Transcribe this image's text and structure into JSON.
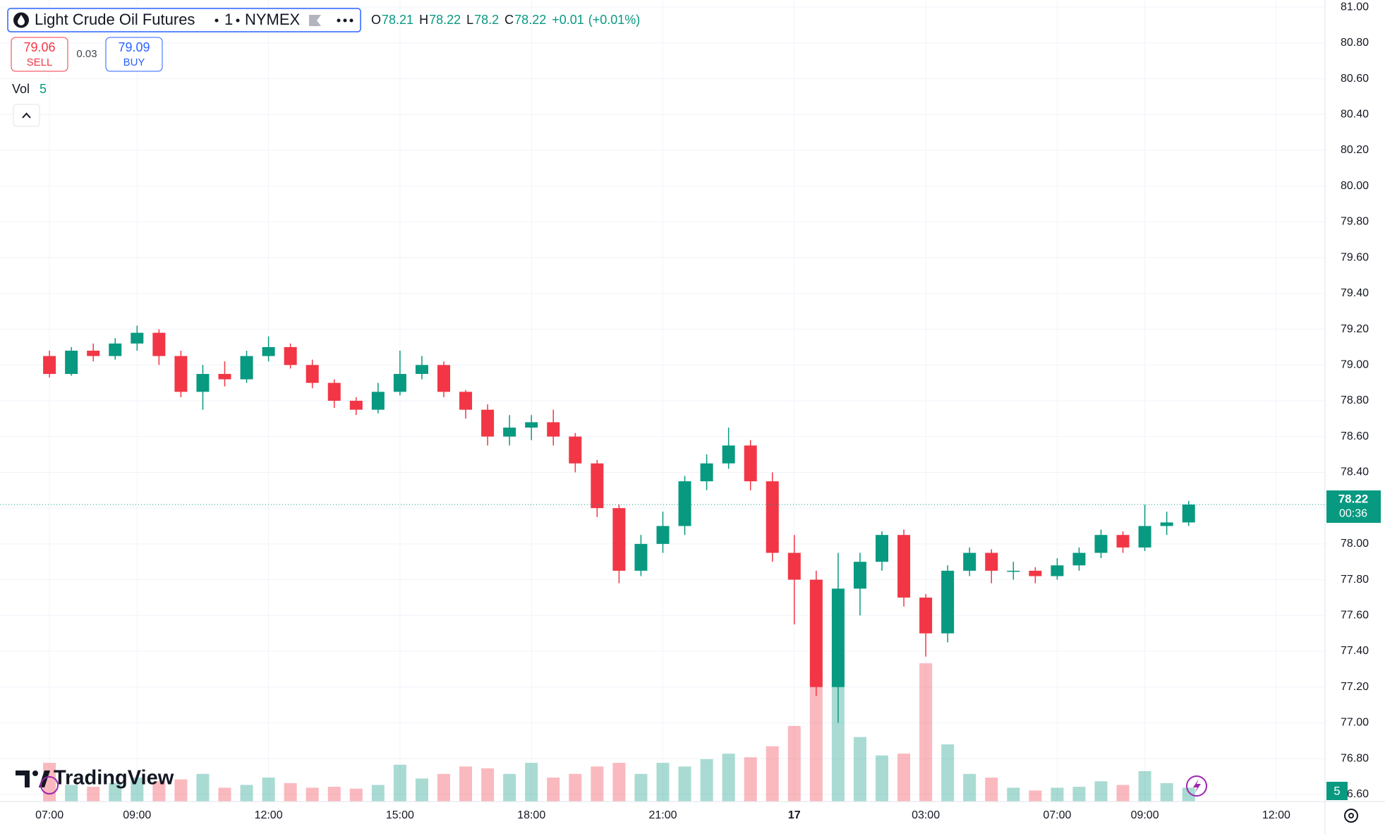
{
  "chart_data": {
    "type": "candlestick",
    "title": "Light Crude Oil Futures",
    "interval": "1",
    "exchange": "NYMEX",
    "ohlc_legend": {
      "labels": [
        "O",
        "H",
        "L",
        "C"
      ],
      "open": 78.21,
      "high": 78.22,
      "low": 78.2,
      "close": 78.22,
      "change": "+0.01",
      "change_pct": "(+0.01%)"
    },
    "sell": {
      "price": 79.06,
      "label": "SELL"
    },
    "spread": 0.03,
    "buy": {
      "price": 79.09,
      "label": "BUY"
    },
    "volume_legend": {
      "label": "Vol",
      "value": 5
    },
    "logo": "TradingView",
    "last_price": {
      "value": 78.22,
      "countdown": "00:36"
    },
    "up_color": "#089981",
    "down_color": "#f23645",
    "grid": true,
    "categories": [
      "07:00",
      null,
      null,
      null,
      "09:00",
      null,
      null,
      null,
      null,
      null,
      "12:00",
      null,
      null,
      null,
      null,
      null,
      "15:00",
      null,
      null,
      null,
      null,
      null,
      "18:00",
      null,
      null,
      null,
      null,
      null,
      "21:00",
      null,
      null,
      null,
      null,
      null,
      "17",
      null,
      null,
      null,
      null,
      null,
      "03:00",
      null,
      null,
      null,
      null,
      null,
      "07:00",
      null,
      null,
      null,
      "09:00",
      null,
      null,
      null,
      null,
      null,
      "12:00",
      null,
      null
    ],
    "open": [
      79.05,
      78.95,
      79.08,
      79.05,
      79.12,
      79.18,
      79.05,
      78.85,
      78.95,
      78.92,
      79.05,
      79.1,
      79.0,
      78.9,
      78.8,
      78.75,
      78.85,
      78.95,
      79.0,
      78.85,
      78.75,
      78.6,
      78.65,
      78.68,
      78.6,
      78.45,
      78.2,
      77.85,
      78.0,
      78.1,
      78.35,
      78.45,
      78.55,
      78.35,
      77.95,
      77.8,
      77.2,
      77.75,
      77.9,
      78.05,
      77.7,
      77.5,
      77.85,
      77.95,
      77.85,
      77.85,
      77.82,
      77.88,
      77.95,
      78.05,
      77.98,
      78.1,
      78.12,
      null,
      null,
      null,
      null,
      null,
      null
    ],
    "high": [
      79.08,
      79.1,
      79.12,
      79.15,
      79.22,
      79.2,
      79.08,
      79.0,
      79.02,
      79.08,
      79.16,
      79.12,
      79.03,
      78.92,
      78.82,
      78.9,
      79.08,
      79.05,
      79.02,
      78.86,
      78.78,
      78.72,
      78.72,
      78.75,
      78.62,
      78.47,
      78.22,
      78.05,
      78.18,
      78.38,
      78.5,
      78.65,
      78.58,
      78.4,
      78.05,
      77.85,
      77.95,
      77.95,
      78.07,
      78.08,
      77.72,
      77.88,
      77.98,
      77.97,
      77.9,
      77.87,
      77.92,
      77.98,
      78.08,
      78.07,
      78.22,
      78.18,
      78.24,
      null,
      null,
      null,
      null,
      null,
      null
    ],
    "low": [
      78.93,
      78.94,
      79.02,
      79.03,
      79.08,
      79.0,
      78.82,
      78.75,
      78.88,
      78.9,
      79.02,
      78.98,
      78.87,
      78.76,
      78.72,
      78.73,
      78.83,
      78.92,
      78.82,
      78.7,
      78.55,
      78.55,
      78.58,
      78.55,
      78.4,
      78.15,
      77.78,
      77.82,
      77.95,
      78.05,
      78.3,
      78.42,
      78.3,
      77.9,
      77.55,
      77.15,
      77.0,
      77.6,
      77.85,
      77.65,
      77.37,
      77.45,
      77.82,
      77.78,
      77.8,
      77.78,
      77.8,
      77.85,
      77.92,
      77.95,
      77.96,
      78.05,
      78.1,
      null,
      null,
      null,
      null,
      null,
      null
    ],
    "close": [
      78.95,
      79.08,
      79.05,
      79.12,
      79.18,
      79.05,
      78.85,
      78.95,
      78.92,
      79.05,
      79.1,
      79.0,
      78.9,
      78.8,
      78.75,
      78.85,
      78.95,
      79.0,
      78.85,
      78.75,
      78.6,
      78.65,
      78.68,
      78.6,
      78.45,
      78.2,
      77.85,
      78.0,
      78.1,
      78.35,
      78.45,
      78.55,
      78.35,
      77.95,
      77.8,
      77.2,
      77.75,
      77.9,
      78.05,
      77.7,
      77.5,
      77.85,
      77.95,
      77.85,
      77.85,
      77.82,
      77.88,
      77.95,
      78.05,
      77.98,
      78.1,
      78.12,
      78.22,
      null,
      null,
      null,
      null,
      null,
      null
    ],
    "volume": [
      420,
      180,
      160,
      200,
      260,
      220,
      240,
      300,
      150,
      180,
      260,
      200,
      150,
      160,
      140,
      180,
      400,
      250,
      300,
      380,
      360,
      300,
      420,
      260,
      300,
      380,
      420,
      300,
      420,
      380,
      460,
      520,
      480,
      600,
      820,
      1400,
      1600,
      700,
      500,
      520,
      1500,
      620,
      300,
      260,
      150,
      120,
      150,
      160,
      220,
      180,
      330,
      200,
      150,
      null,
      null,
      null,
      null,
      null,
      null
    ],
    "ylim": [
      76.56,
      81.04
    ],
    "yticks": [
      {
        "value": 76.6,
        "label": "76.60"
      },
      {
        "value": 76.8,
        "label": "76.80"
      },
      {
        "value": 77,
        "label": "77.00"
      },
      {
        "value": 77.2,
        "label": "77.20"
      },
      {
        "value": 77.4,
        "label": "77.40"
      },
      {
        "value": 77.6,
        "label": "77.60"
      },
      {
        "value": 77.8,
        "label": "77.80"
      },
      {
        "value": 78,
        "label": "78.00"
      },
      {
        "value": 78.2,
        "label": "78.20"
      },
      {
        "value": 78.4,
        "label": "78.40"
      },
      {
        "value": 78.6,
        "label": "78.60"
      },
      {
        "value": 78.8,
        "label": "78.80"
      },
      {
        "value": 79,
        "label": "79.00"
      },
      {
        "value": 79.2,
        "label": "79.20"
      },
      {
        "value": 79.4,
        "label": "79.40"
      },
      {
        "value": 79.6,
        "label": "79.60"
      },
      {
        "value": 79.8,
        "label": "79.80"
      },
      {
        "value": 80,
        "label": "80.00"
      },
      {
        "value": 80.2,
        "label": "80.20"
      },
      {
        "value": 80.4,
        "label": "80.40"
      },
      {
        "value": 80.6,
        "label": "80.60"
      },
      {
        "value": 80.8,
        "label": "80.80"
      },
      {
        "value": 81,
        "label": "81.00"
      }
    ]
  }
}
